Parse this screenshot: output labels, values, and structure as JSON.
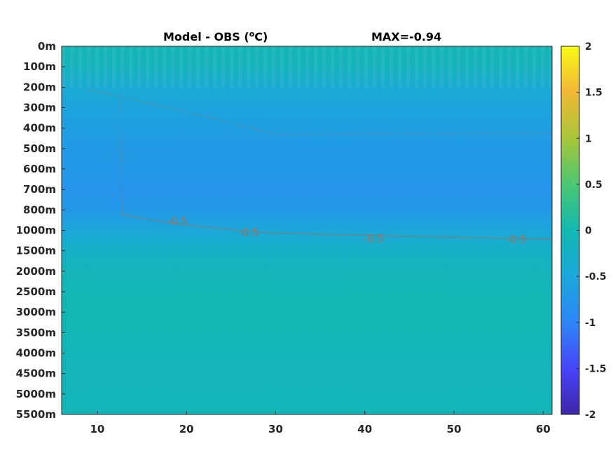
{
  "chart_data": {
    "type": "heatmap",
    "title": "Model - OBS (",
    "title_sup": "o",
    "title_unit": "C)",
    "annotation": "MAX=-0.94",
    "x_ticks": [
      "10",
      "20",
      "30",
      "40",
      "50",
      "60"
    ],
    "x_tick_values": [
      10,
      20,
      30,
      40,
      50,
      60
    ],
    "xlim": [
      6,
      61
    ],
    "y_ticks": [
      "0m",
      "100m",
      "200m",
      "300m",
      "400m",
      "500m",
      "600m",
      "700m",
      "800m",
      "1000m",
      "1500m",
      "2000m",
      "2500m",
      "3000m",
      "3500m",
      "4000m",
      "4500m",
      "5000m",
      "5500m"
    ],
    "colorbar": {
      "ticks": [
        "2",
        "1.5",
        "1",
        "0.5",
        "0",
        "-0.5",
        "-1",
        "-1.5",
        "-2"
      ],
      "range": [
        -2,
        2
      ],
      "colormap": "parula"
    },
    "contour_level": -0.5,
    "contour_labels": [
      "-0.5",
      "-0.5",
      "-0.5",
      "-0.5"
    ],
    "contour_label_x": [
      19,
      27,
      41,
      57
    ],
    "field_rows": [
      {
        "depth": "0m",
        "value": -0.05
      },
      {
        "depth": "100m",
        "value": -0.15
      },
      {
        "depth": "200m",
        "value": -0.4
      },
      {
        "depth": "300m",
        "value": -0.55
      },
      {
        "depth": "400m",
        "value": -0.62
      },
      {
        "depth": "500m",
        "value": -0.7
      },
      {
        "depth": "600m",
        "value": -0.72
      },
      {
        "depth": "700m",
        "value": -0.8
      },
      {
        "depth": "800m",
        "value": -0.72
      },
      {
        "depth": "1000m",
        "value": -0.5
      },
      {
        "depth": "1500m",
        "value": -0.25
      },
      {
        "depth": "2000m",
        "value": -0.12
      },
      {
        "depth": "2500m",
        "value": -0.05
      },
      {
        "depth": "3000m",
        "value": -0.02
      },
      {
        "depth": "3500m",
        "value": -0.05
      },
      {
        "depth": "4000m",
        "value": -0.1
      },
      {
        "depth": "4500m",
        "value": -0.12
      },
      {
        "depth": "5000m",
        "value": -0.1
      },
      {
        "depth": "5500m",
        "value": -0.08
      }
    ],
    "colors": {
      "frame": "#262626",
      "contour": "#a07058",
      "shallow_cold": "#2e8cf0",
      "near_zero": "#19b3b2"
    }
  }
}
